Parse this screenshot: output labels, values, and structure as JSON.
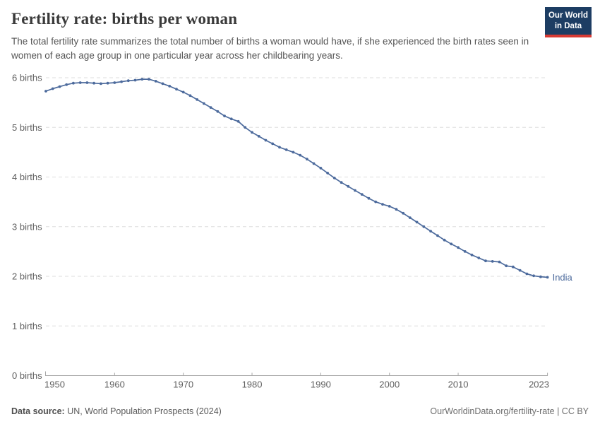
{
  "header": {
    "title": "Fertility rate: births per woman",
    "subtitle": "The total fertility rate summarizes the total number of births a woman would have, if she experienced the birth rates seen in women of each age group in one particular year across her childbearing years.",
    "logo": {
      "line1": "Our World",
      "line2": "in Data",
      "bg_color": "#1d3d63",
      "accent_color": "#d73a33"
    }
  },
  "chart_data": {
    "type": "line",
    "title": "Fertility rate: births per woman",
    "xlabel": "",
    "ylabel": "births",
    "xlim": [
      1950,
      2023
    ],
    "ylim": [
      0,
      6
    ],
    "grid": "horizontal-dashed",
    "legend_position": "end-of-line-label",
    "yticks": [
      0,
      1,
      2,
      3,
      4,
      5,
      6
    ],
    "ytick_labels": [
      "0 births",
      "1 births",
      "2 births",
      "3 births",
      "4 births",
      "5 births",
      "6 births"
    ],
    "xticks": [
      1950,
      1960,
      1970,
      1980,
      1990,
      2000,
      2010,
      2023
    ],
    "xtick_labels": [
      "1950",
      "1960",
      "1970",
      "1980",
      "1990",
      "2000",
      "2010",
      "2023"
    ],
    "series": [
      {
        "name": "India",
        "end_label": "India",
        "color": "#4c6a9c",
        "years": [
          1950,
          1951,
          1952,
          1953,
          1954,
          1955,
          1956,
          1957,
          1958,
          1959,
          1960,
          1961,
          1962,
          1963,
          1964,
          1965,
          1966,
          1967,
          1968,
          1969,
          1970,
          1971,
          1972,
          1973,
          1974,
          1975,
          1976,
          1977,
          1978,
          1979,
          1980,
          1981,
          1982,
          1983,
          1984,
          1985,
          1986,
          1987,
          1988,
          1989,
          1990,
          1991,
          1992,
          1993,
          1994,
          1995,
          1996,
          1997,
          1998,
          1999,
          2000,
          2001,
          2002,
          2003,
          2004,
          2005,
          2006,
          2007,
          2008,
          2009,
          2010,
          2011,
          2012,
          2013,
          2014,
          2015,
          2016,
          2017,
          2018,
          2019,
          2020,
          2021,
          2022,
          2023
        ],
        "values": [
          5.73,
          5.78,
          5.82,
          5.86,
          5.89,
          5.9,
          5.9,
          5.89,
          5.88,
          5.89,
          5.9,
          5.92,
          5.94,
          5.95,
          5.97,
          5.97,
          5.93,
          5.88,
          5.83,
          5.77,
          5.71,
          5.64,
          5.56,
          5.48,
          5.4,
          5.32,
          5.23,
          5.17,
          5.12,
          5.0,
          4.9,
          4.82,
          4.74,
          4.67,
          4.6,
          4.55,
          4.5,
          4.44,
          4.36,
          4.27,
          4.18,
          4.08,
          3.98,
          3.89,
          3.81,
          3.73,
          3.65,
          3.57,
          3.5,
          3.45,
          3.41,
          3.35,
          3.27,
          3.18,
          3.09,
          3.0,
          2.91,
          2.82,
          2.73,
          2.65,
          2.58,
          2.5,
          2.43,
          2.37,
          2.31,
          2.3,
          2.29,
          2.21,
          2.19,
          2.12,
          2.05,
          2.01,
          1.99,
          1.98
        ]
      }
    ]
  },
  "footer": {
    "data_source_label": "Data source:",
    "data_source_value": " UN, World Population Prospects (2024)",
    "attribution": "OurWorldinData.org/fertility-rate | CC BY"
  },
  "colors": {
    "line": "#4c6a9c",
    "grid": "#dedede",
    "axis": "#a8a8a8",
    "tick_text": "#606060",
    "title_text": "#3a3a3a",
    "subtitle_text": "#565656",
    "footer_text": "#5a5a5a"
  }
}
